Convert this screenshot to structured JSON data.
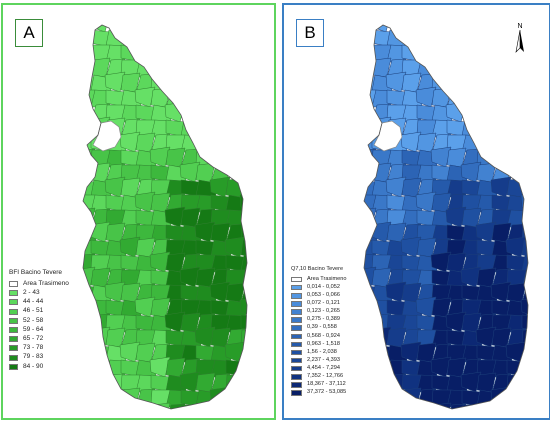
{
  "panel_a": {
    "label": "A",
    "legend_title": "BFI Bacino Tevere",
    "area_label": "Area Trasimeno",
    "classes": [
      {
        "label": "2 - 43",
        "color": "#66e066"
      },
      {
        "label": "44 - 44",
        "color": "#5cd85c"
      },
      {
        "label": "46 - 51",
        "color": "#52cf52"
      },
      {
        "label": "52 - 58",
        "color": "#48c448"
      },
      {
        "label": "59 - 64",
        "color": "#3db83d"
      },
      {
        "label": "65 - 72",
        "color": "#32aa32"
      },
      {
        "label": "73 - 78",
        "color": "#289c28"
      },
      {
        "label": "79 - 83",
        "color": "#1f8c1f"
      },
      {
        "label": "84 - 90",
        "color": "#157a15"
      }
    ]
  },
  "panel_b": {
    "label": "B",
    "legend_title": "Q7,10 Bacino Tevere",
    "area_label": "Area Trasimeno",
    "north_icon": "north-arrow-icon",
    "classes": [
      {
        "label": "0,014 - 0,052",
        "color": "#5ba0ea"
      },
      {
        "label": "0,053 - 0,066",
        "color": "#5296e2"
      },
      {
        "label": "0,072 - 0,121",
        "color": "#4a8cda"
      },
      {
        "label": "0,123 - 0,265",
        "color": "#4282d1"
      },
      {
        "label": "0,275 - 0,389",
        "color": "#3a78c8"
      },
      {
        "label": "0,39 - 0,558",
        "color": "#336ebf"
      },
      {
        "label": "0,568 - 0,924",
        "color": "#2c64b5"
      },
      {
        "label": "0,963 - 1,518",
        "color": "#255aab"
      },
      {
        "label": "1,56 - 2,038",
        "color": "#1f50a1"
      },
      {
        "label": "2,237 - 4,393",
        "color": "#1a4696"
      },
      {
        "label": "4,454 - 7,294",
        "color": "#153c8b"
      },
      {
        "label": "7,352 - 12,766",
        "color": "#103280"
      },
      {
        "label": "18,367 - 37,112",
        "color": "#0c2874"
      },
      {
        "label": "37,372 - 53,085",
        "color": "#081e66"
      }
    ]
  }
}
